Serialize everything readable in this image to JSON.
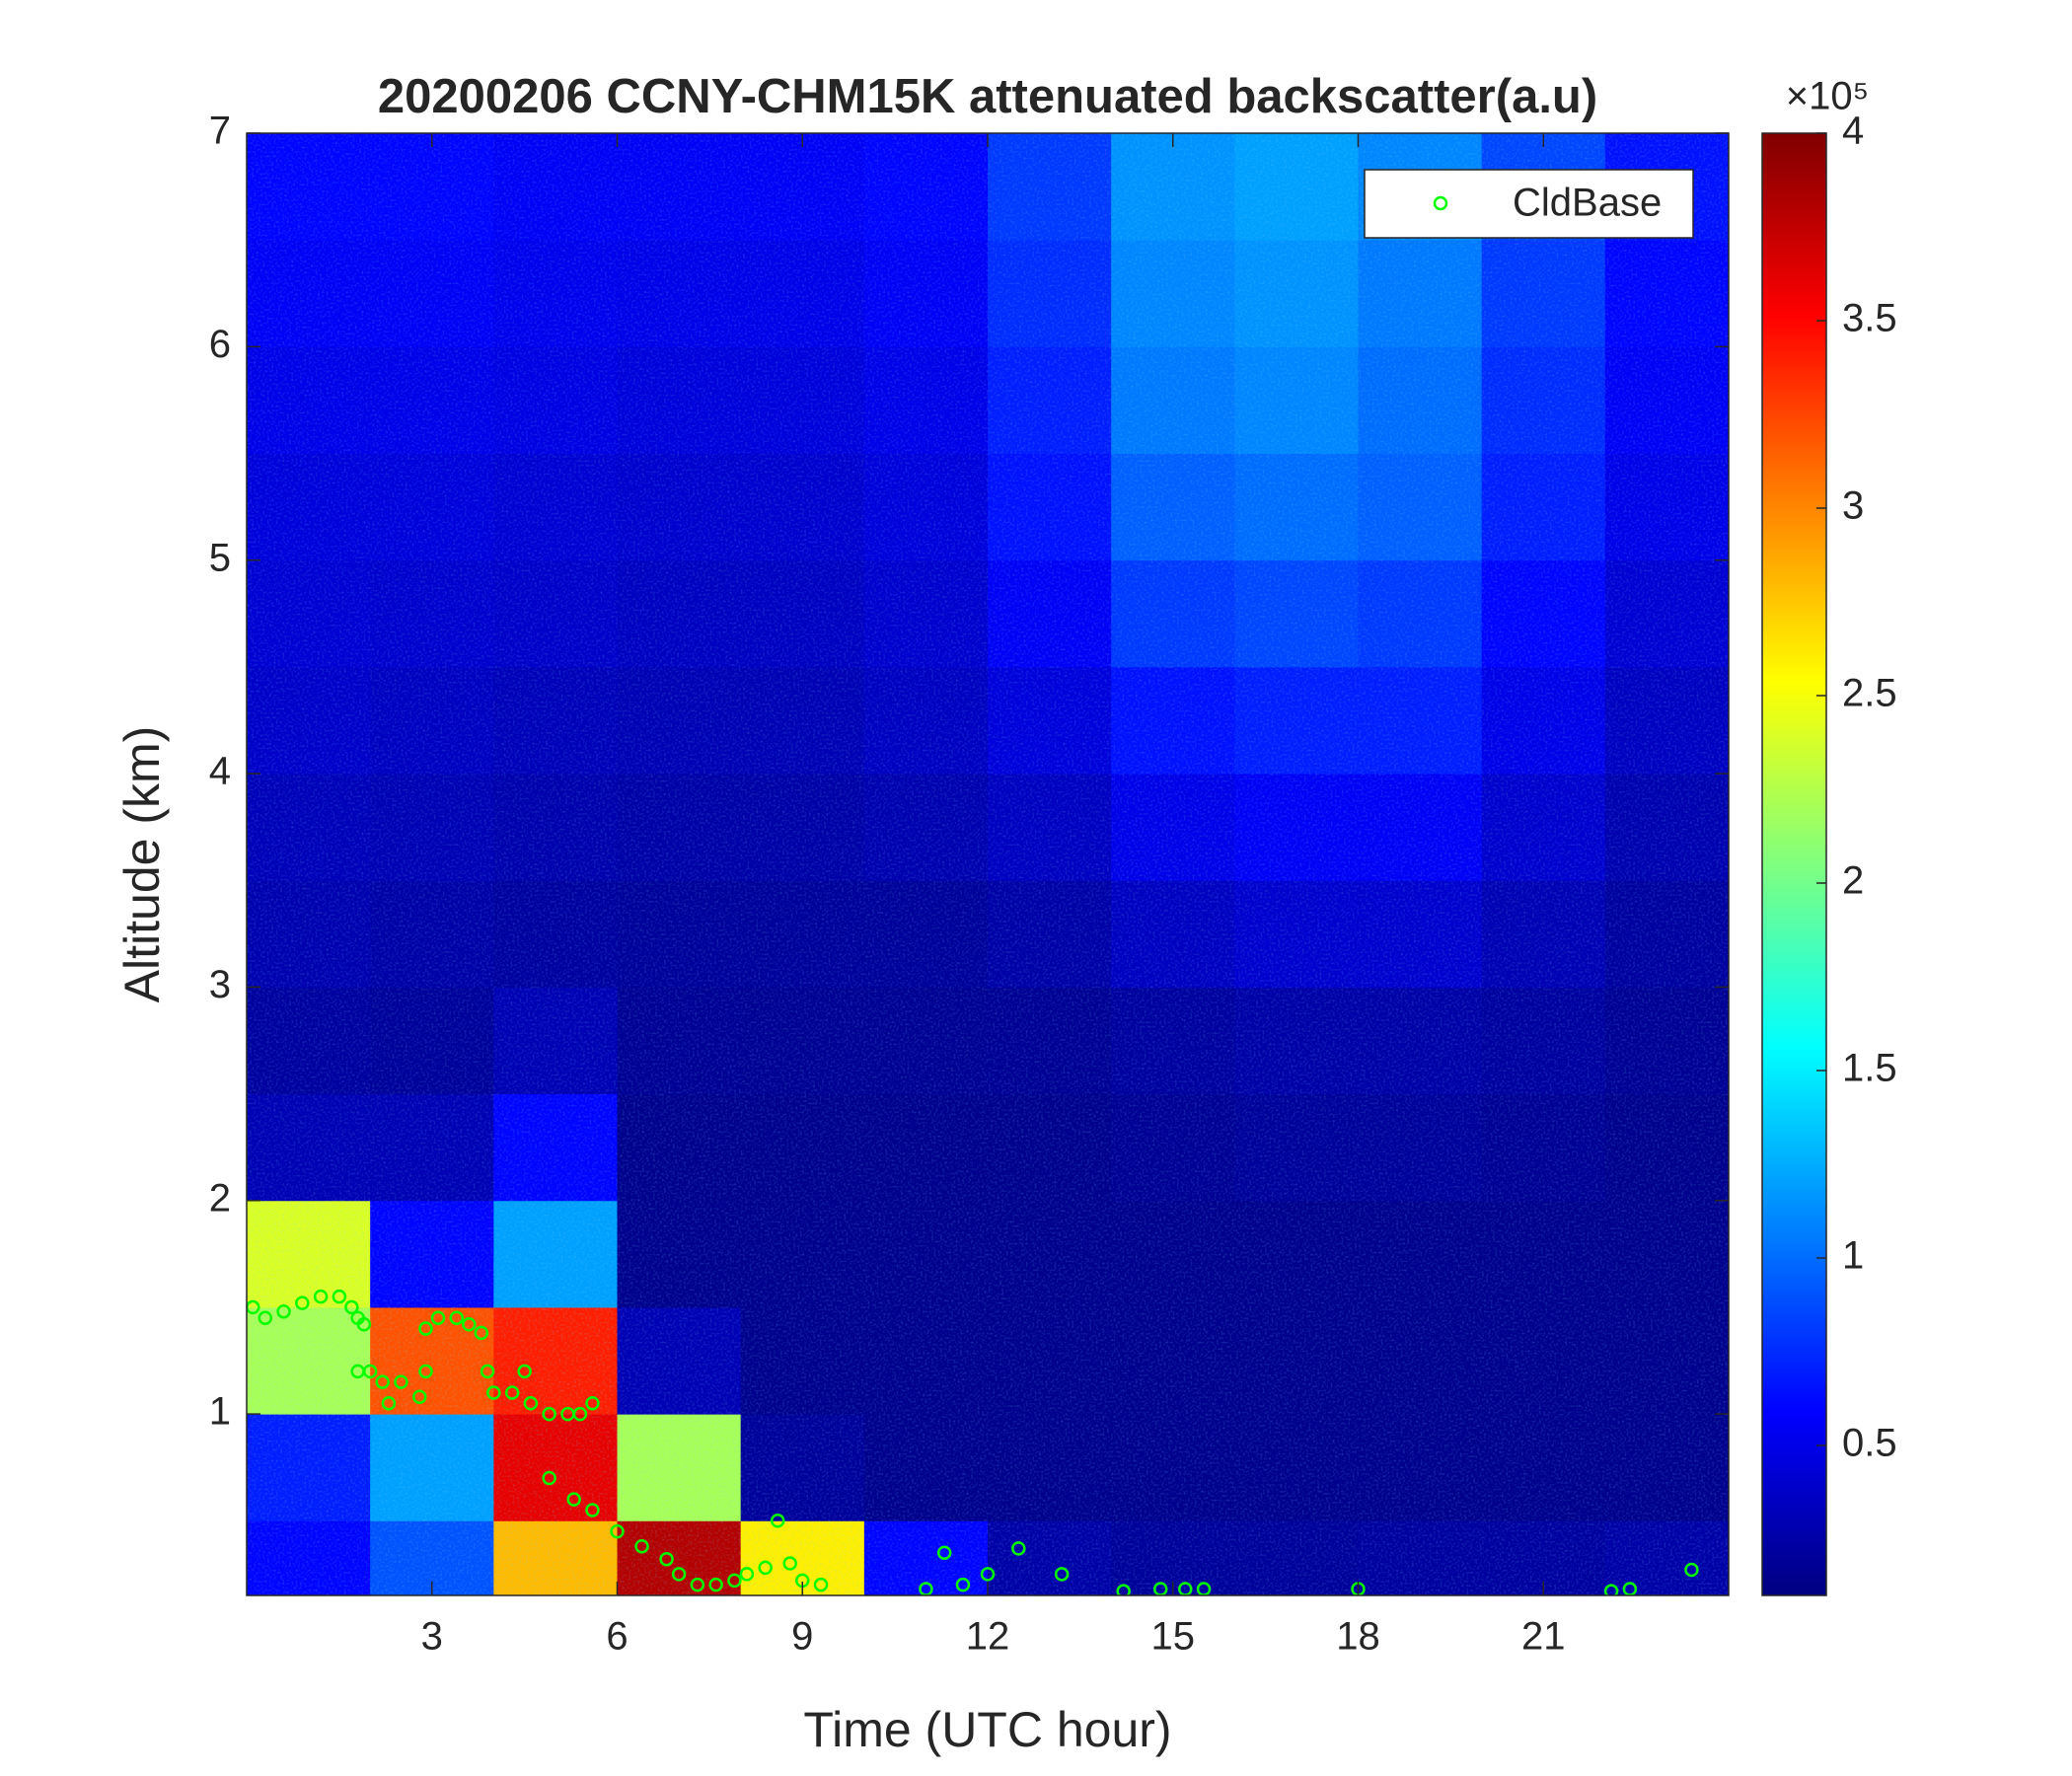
{
  "chart_data": {
    "type": "heatmap",
    "title": "20200206 CCNY-CHM15K attenuated backscatter(a.u)",
    "xlabel": "Time (UTC hour)",
    "ylabel": "Altitude (km)",
    "xlim": [
      0,
      24
    ],
    "ylim": [
      0.15,
      7
    ],
    "xticks": [
      3,
      6,
      9,
      12,
      15,
      18,
      21
    ],
    "yticks": [
      1,
      2,
      3,
      4,
      5,
      6,
      7
    ],
    "colormap": "jet",
    "clim": [
      0.1,
      4
    ],
    "colorbar_ticks": [
      0.5,
      1,
      1.5,
      2,
      2.5,
      3,
      3.5,
      4
    ],
    "colorbar_exponent": "×10⁵",
    "x_edges": [
      0,
      2,
      4,
      6,
      8,
      10,
      12,
      14,
      16,
      18,
      20,
      22,
      24
    ],
    "y_edges": [
      0.15,
      0.5,
      1,
      1.5,
      2,
      2.5,
      3,
      3.5,
      4,
      4.5,
      5,
      5.5,
      6,
      6.5,
      7
    ],
    "z": [
      [
        0.6,
        0.9,
        2.8,
        3.8,
        2.6,
        0.6,
        0.25,
        0.2,
        0.2,
        0.22,
        0.22,
        0.25
      ],
      [
        0.7,
        1.2,
        3.6,
        2.2,
        0.2,
        0.15,
        0.15,
        0.15,
        0.15,
        0.15,
        0.15,
        0.15
      ],
      [
        2.2,
        3.2,
        3.4,
        0.3,
        0.15,
        0.15,
        0.15,
        0.15,
        0.15,
        0.15,
        0.15,
        0.15
      ],
      [
        2.4,
        0.6,
        1.2,
        0.15,
        0.15,
        0.15,
        0.15,
        0.15,
        0.15,
        0.15,
        0.15,
        0.15
      ],
      [
        0.3,
        0.3,
        0.6,
        0.15,
        0.15,
        0.15,
        0.15,
        0.18,
        0.2,
        0.2,
        0.18,
        0.15
      ],
      [
        0.22,
        0.2,
        0.3,
        0.18,
        0.17,
        0.17,
        0.18,
        0.22,
        0.25,
        0.25,
        0.22,
        0.18
      ],
      [
        0.28,
        0.25,
        0.22,
        0.2,
        0.2,
        0.2,
        0.25,
        0.35,
        0.4,
        0.4,
        0.3,
        0.22
      ],
      [
        0.32,
        0.3,
        0.27,
        0.25,
        0.25,
        0.28,
        0.35,
        0.5,
        0.55,
        0.55,
        0.4,
        0.28
      ],
      [
        0.38,
        0.35,
        0.32,
        0.3,
        0.3,
        0.35,
        0.45,
        0.65,
        0.7,
        0.7,
        0.5,
        0.35
      ],
      [
        0.42,
        0.4,
        0.38,
        0.35,
        0.35,
        0.4,
        0.55,
        0.8,
        0.85,
        0.8,
        0.6,
        0.42
      ],
      [
        0.45,
        0.45,
        0.42,
        0.4,
        0.4,
        0.45,
        0.65,
        0.95,
        1.0,
        0.95,
        0.7,
        0.5
      ],
      [
        0.5,
        0.5,
        0.48,
        0.45,
        0.45,
        0.5,
        0.7,
        1.05,
        1.1,
        1.0,
        0.75,
        0.55
      ],
      [
        0.55,
        0.55,
        0.52,
        0.5,
        0.5,
        0.55,
        0.75,
        1.1,
        1.15,
        1.05,
        0.8,
        0.6
      ],
      [
        0.6,
        0.6,
        0.55,
        0.55,
        0.55,
        0.6,
        0.8,
        1.15,
        1.2,
        1.1,
        0.85,
        0.65
      ]
    ],
    "legend": "upper right",
    "series": [
      {
        "name": "CldBase",
        "color": "#00ff00",
        "type": "scatter",
        "x": [
          0.1,
          0.3,
          0.6,
          0.9,
          1.2,
          1.5,
          1.7,
          1.8,
          1.9,
          1.8,
          2.0,
          2.2,
          2.3,
          2.5,
          2.8,
          2.9,
          2.9,
          3.1,
          3.4,
          3.6,
          3.8,
          3.9,
          4.0,
          4.3,
          4.5,
          4.6,
          4.9,
          5.2,
          5.4,
          5.6,
          4.9,
          5.3,
          5.6,
          6.0,
          6.4,
          6.8,
          7.0,
          7.3,
          7.6,
          7.9,
          8.1,
          8.4,
          8.6,
          8.8,
          9.0,
          9.3,
          11.0,
          11.3,
          11.6,
          12.0,
          12.5,
          13.2,
          14.2,
          14.8,
          15.2,
          15.5,
          18.0,
          22.1,
          22.4,
          23.4
        ],
        "y": [
          1.5,
          1.45,
          1.48,
          1.52,
          1.55,
          1.55,
          1.5,
          1.45,
          1.42,
          1.2,
          1.2,
          1.15,
          1.05,
          1.15,
          1.08,
          1.2,
          1.4,
          1.45,
          1.45,
          1.42,
          1.38,
          1.2,
          1.1,
          1.1,
          1.2,
          1.05,
          1.0,
          1.0,
          1.0,
          1.05,
          0.7,
          0.6,
          0.55,
          0.45,
          0.38,
          0.32,
          0.25,
          0.2,
          0.2,
          0.22,
          0.25,
          0.28,
          0.5,
          0.3,
          0.22,
          0.2,
          0.18,
          0.35,
          0.2,
          0.25,
          0.37,
          0.25,
          0.17,
          0.18,
          0.18,
          0.18,
          0.18,
          0.17,
          0.18,
          0.27
        ]
      }
    ]
  }
}
